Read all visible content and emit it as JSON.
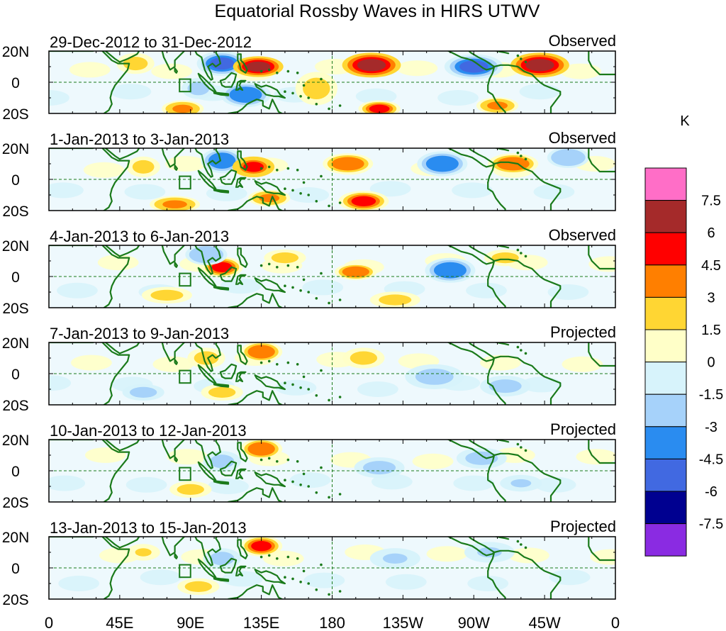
{
  "title": "Equatorial Rossby Waves in HIRS UTWV",
  "panels": [
    {
      "date_range": "29-Dec-2012 to 31-Dec-2012",
      "status": "Observed"
    },
    {
      "date_range": "1-Jan-2013 to 3-Jan-2013",
      "status": "Observed"
    },
    {
      "date_range": "4-Jan-2013 to 6-Jan-2013",
      "status": "Observed"
    },
    {
      "date_range": "7-Jan-2013 to 9-Jan-2013",
      "status": "Projected"
    },
    {
      "date_range": "10-Jan-2013 to 12-Jan-2013",
      "status": "Projected"
    },
    {
      "date_range": "13-Jan-2013 to 15-Jan-2013",
      "status": "Projected"
    }
  ],
  "lat_labels": [
    "20N",
    "0",
    "20S"
  ],
  "lon_labels": [
    "0",
    "45E",
    "90E",
    "135E",
    "180",
    "135W",
    "90W",
    "45W",
    "0"
  ],
  "colorbar": {
    "unit": "K",
    "levels": [
      "7.5",
      "6",
      "4.5",
      "3",
      "1.5",
      "0",
      "-1.5",
      "-3",
      "-4.5",
      "-6",
      "-7.5"
    ],
    "colors": [
      "#ff6ec7",
      "#a52a2a",
      "#ff0000",
      "#ff7f00",
      "#ffd633",
      "#ffffc8",
      "#d7f3fb",
      "#a6d2fa",
      "#2a8cf0",
      "#4169e1",
      "#000090",
      "#8a2be2"
    ]
  },
  "colors": {
    "coastline": "#1a7a1a",
    "reference_line": "#1a7a1a",
    "frame": "#000000"
  },
  "anomalies": [
    [
      {
        "lon": 110,
        "lat": 12,
        "v": -5,
        "rx": 12,
        "ry": 6
      },
      {
        "lon": 133,
        "lat": 10,
        "v": 6,
        "rx": 12,
        "ry": 5
      },
      {
        "lon": 205,
        "lat": 11,
        "v": 6,
        "rx": 14,
        "ry": 6
      },
      {
        "lon": 270,
        "lat": 10,
        "v": -5,
        "rx": 14,
        "ry": 6
      },
      {
        "lon": 312,
        "lat": 11,
        "v": 6.5,
        "rx": 14,
        "ry": 6
      },
      {
        "lon": 125,
        "lat": -8,
        "v": -4.5,
        "rx": 12,
        "ry": 6
      },
      {
        "lon": 170,
        "lat": -4,
        "v": 2,
        "rx": 10,
        "ry": 8
      },
      {
        "lon": 210,
        "lat": -17,
        "v": 4.5,
        "rx": 10,
        "ry": 4
      },
      {
        "lon": 85,
        "lat": -17,
        "v": 3.5,
        "rx": 10,
        "ry": 4
      },
      {
        "lon": 55,
        "lat": 12,
        "v": 2,
        "rx": 9,
        "ry": 5
      },
      {
        "lon": 95,
        "lat": -4,
        "v": -2,
        "rx": 8,
        "ry": 5
      },
      {
        "lon": 285,
        "lat": -15,
        "v": 3.5,
        "rx": 10,
        "ry": 4
      }
    ],
    [
      {
        "lon": 110,
        "lat": 12,
        "v": -4,
        "rx": 10,
        "ry": 6
      },
      {
        "lon": 130,
        "lat": 8,
        "v": 5,
        "rx": 10,
        "ry": 5
      },
      {
        "lon": 190,
        "lat": 10,
        "v": 4,
        "rx": 12,
        "ry": 5
      },
      {
        "lon": 250,
        "lat": 10,
        "v": -4,
        "rx": 12,
        "ry": 6
      },
      {
        "lon": 295,
        "lat": 10,
        "v": 4,
        "rx": 12,
        "ry": 5
      },
      {
        "lon": 200,
        "lat": -14,
        "v": 4.5,
        "rx": 12,
        "ry": 5
      },
      {
        "lon": 80,
        "lat": -16,
        "v": 3.5,
        "rx": 12,
        "ry": 4
      },
      {
        "lon": 140,
        "lat": -12,
        "v": 3,
        "rx": 10,
        "ry": 4
      },
      {
        "lon": 60,
        "lat": 8,
        "v": 2.5,
        "rx": 8,
        "ry": 5
      },
      {
        "lon": 330,
        "lat": 14,
        "v": -3,
        "rx": 10,
        "ry": 5
      }
    ],
    [
      {
        "lon": 110,
        "lat": 6,
        "v": 4.5,
        "rx": 10,
        "ry": 5
      },
      {
        "lon": 100,
        "lat": 14,
        "v": -3,
        "rx": 10,
        "ry": 5
      },
      {
        "lon": 195,
        "lat": 3,
        "v": 4,
        "rx": 10,
        "ry": 4
      },
      {
        "lon": 255,
        "lat": 4,
        "v": -4,
        "rx": 12,
        "ry": 6
      },
      {
        "lon": 75,
        "lat": -12,
        "v": 2.5,
        "rx": 12,
        "ry": 4
      },
      {
        "lon": 150,
        "lat": 12,
        "v": 2,
        "rx": 10,
        "ry": 4
      },
      {
        "lon": 290,
        "lat": 12,
        "v": 2,
        "rx": 10,
        "ry": 4
      },
      {
        "lon": 220,
        "lat": -15,
        "v": 2,
        "rx": 12,
        "ry": 4
      }
    ],
    [
      {
        "lon": 135,
        "lat": 14,
        "v": 4,
        "rx": 10,
        "ry": 5
      },
      {
        "lon": 100,
        "lat": 10,
        "v": 2,
        "rx": 9,
        "ry": 5
      },
      {
        "lon": 200,
        "lat": 10,
        "v": 2.5,
        "rx": 10,
        "ry": 5
      },
      {
        "lon": 245,
        "lat": -2,
        "v": -2.5,
        "rx": 14,
        "ry": 6
      },
      {
        "lon": 60,
        "lat": -12,
        "v": -2,
        "rx": 10,
        "ry": 4
      },
      {
        "lon": 110,
        "lat": -12,
        "v": 2,
        "rx": 10,
        "ry": 4
      },
      {
        "lon": 290,
        "lat": -8,
        "v": -2,
        "rx": 12,
        "ry": 5
      }
    ],
    [
      {
        "lon": 135,
        "lat": 14,
        "v": 4,
        "rx": 10,
        "ry": 5
      },
      {
        "lon": 110,
        "lat": 6,
        "v": -2.5,
        "rx": 9,
        "ry": 5
      },
      {
        "lon": 90,
        "lat": -12,
        "v": 2,
        "rx": 10,
        "ry": 4
      },
      {
        "lon": 210,
        "lat": 2,
        "v": -2,
        "rx": 12,
        "ry": 5
      },
      {
        "lon": 275,
        "lat": 8,
        "v": -2,
        "rx": 12,
        "ry": 5
      },
      {
        "lon": 300,
        "lat": -8,
        "v": -1.8,
        "rx": 10,
        "ry": 4
      }
    ],
    [
      {
        "lon": 135,
        "lat": 14,
        "v": 4.5,
        "rx": 10,
        "ry": 5
      },
      {
        "lon": 110,
        "lat": 6,
        "v": -2,
        "rx": 9,
        "ry": 5
      },
      {
        "lon": 95,
        "lat": -12,
        "v": 2,
        "rx": 10,
        "ry": 4
      },
      {
        "lon": 220,
        "lat": 6,
        "v": -1.8,
        "rx": 12,
        "ry": 5
      },
      {
        "lon": 280,
        "lat": 10,
        "v": -1.8,
        "rx": 12,
        "ry": 5
      },
      {
        "lon": 60,
        "lat": 10,
        "v": 1.8,
        "rx": 8,
        "ry": 4
      }
    ]
  ]
}
